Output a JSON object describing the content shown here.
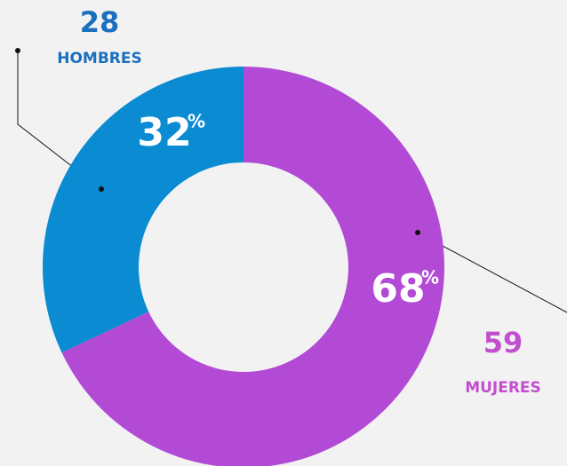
{
  "chart_data": {
    "type": "donut",
    "categories": [
      "HOMBRES",
      "MUJERES"
    ],
    "values": [
      32,
      68
    ],
    "unit": "%",
    "counts": [
      28,
      59
    ],
    "colors": [
      "#0a8bd2",
      "#b24ad5"
    ],
    "label_colors": [
      "#1b6fbf",
      "#c24fd0"
    ]
  }
}
